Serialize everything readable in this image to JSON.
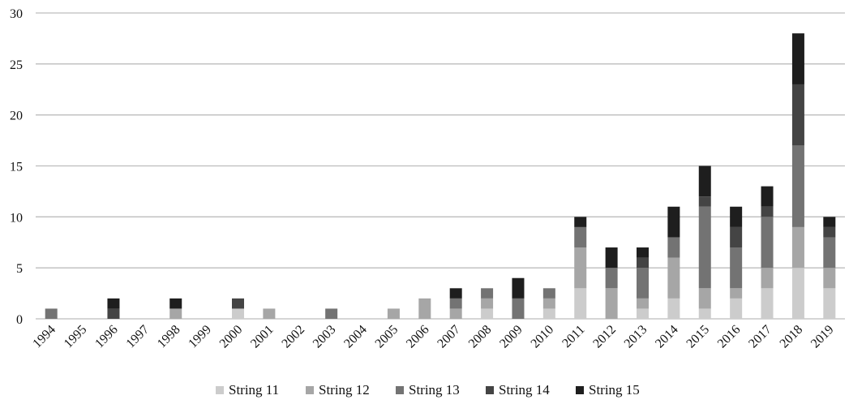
{
  "chart_data": {
    "type": "bar",
    "stacked": true,
    "title": "",
    "xlabel": "",
    "ylabel": "",
    "ylim": [
      0,
      30
    ],
    "yticks": [
      0,
      5,
      10,
      15,
      20,
      25,
      30
    ],
    "grid": true,
    "legend": "bottom",
    "categories": [
      "1994",
      "1995",
      "1996",
      "1997",
      "1998",
      "1999",
      "2000",
      "2001",
      "2002",
      "2003",
      "2004",
      "2005",
      "2006",
      "2007",
      "2008",
      "2009",
      "2010",
      "2011",
      "2012",
      "2013",
      "2014",
      "2015",
      "2016",
      "2017",
      "2018",
      "2019"
    ],
    "series": [
      {
        "name": "String 11",
        "color": "#cccccc",
        "values": [
          0,
          0,
          0,
          0,
          0,
          0,
          1,
          0,
          0,
          0,
          0,
          0,
          0,
          0,
          1,
          0,
          1,
          3,
          0,
          1,
          2,
          1,
          2,
          3,
          5,
          3
        ]
      },
      {
        "name": "String 12",
        "color": "#a6a6a6",
        "values": [
          0,
          0,
          0,
          0,
          1,
          0,
          0,
          1,
          0,
          0,
          0,
          1,
          2,
          1,
          1,
          0,
          1,
          4,
          3,
          1,
          4,
          2,
          1,
          2,
          4,
          2
        ]
      },
      {
        "name": "String 13",
        "color": "#737373",
        "values": [
          1,
          0,
          0,
          0,
          0,
          0,
          0,
          0,
          0,
          1,
          0,
          0,
          0,
          1,
          1,
          2,
          1,
          2,
          2,
          3,
          2,
          8,
          4,
          5,
          8,
          3
        ]
      },
      {
        "name": "String 14",
        "color": "#444444",
        "values": [
          0,
          0,
          1,
          0,
          0,
          0,
          1,
          0,
          0,
          0,
          0,
          0,
          0,
          0,
          0,
          0,
          0,
          0,
          0,
          1,
          0,
          1,
          2,
          1,
          6,
          1
        ]
      },
      {
        "name": "String 15",
        "color": "#1e1e1e",
        "values": [
          0,
          0,
          1,
          0,
          1,
          0,
          0,
          0,
          0,
          0,
          0,
          0,
          0,
          1,
          0,
          2,
          0,
          1,
          2,
          1,
          3,
          3,
          2,
          2,
          5,
          1
        ]
      }
    ]
  }
}
